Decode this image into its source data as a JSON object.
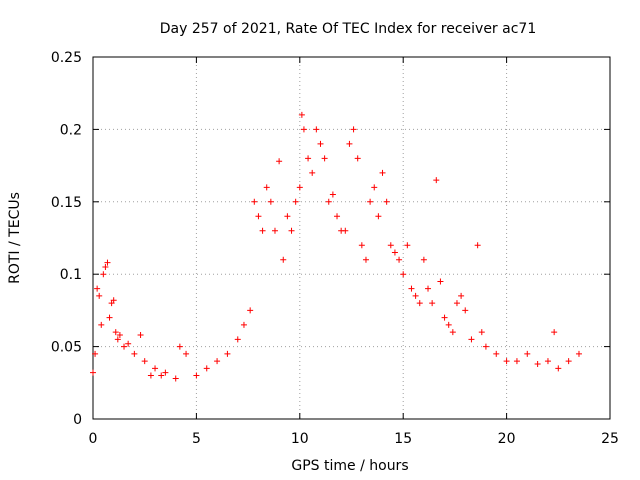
{
  "chart_data": {
    "type": "scatter",
    "title": "Day 257 of 2021, Rate Of TEC Index for receiver ac71",
    "xlabel": "GPS time / hours",
    "ylabel": "ROTI / TECUs",
    "xlim": [
      0,
      25
    ],
    "ylim": [
      0,
      0.25
    ],
    "x_ticks": [
      "0",
      "5",
      "10",
      "15",
      "20",
      "25"
    ],
    "y_ticks": [
      "0",
      "0.05",
      "0.1",
      "0.15",
      "0.2",
      "0.25"
    ],
    "grid": true,
    "marker": "+",
    "series": [
      {
        "color": "#ff0000",
        "points": [
          [
            0.0,
            0.032
          ],
          [
            0.1,
            0.045
          ],
          [
            0.2,
            0.09
          ],
          [
            0.3,
            0.085
          ],
          [
            0.4,
            0.065
          ],
          [
            0.5,
            0.1
          ],
          [
            0.6,
            0.105
          ],
          [
            0.7,
            0.108
          ],
          [
            0.8,
            0.07
          ],
          [
            0.9,
            0.08
          ],
          [
            1.0,
            0.082
          ],
          [
            1.1,
            0.06
          ],
          [
            1.2,
            0.055
          ],
          [
            1.3,
            0.058
          ],
          [
            1.5,
            0.05
          ],
          [
            1.7,
            0.052
          ],
          [
            2.0,
            0.045
          ],
          [
            2.3,
            0.058
          ],
          [
            2.5,
            0.04
          ],
          [
            2.8,
            0.03
          ],
          [
            3.0,
            0.035
          ],
          [
            3.3,
            0.03
          ],
          [
            3.5,
            0.032
          ],
          [
            4.0,
            0.028
          ],
          [
            4.2,
            0.05
          ],
          [
            4.5,
            0.045
          ],
          [
            5.0,
            0.03
          ],
          [
            5.5,
            0.035
          ],
          [
            6.0,
            0.04
          ],
          [
            6.5,
            0.045
          ],
          [
            7.0,
            0.055
          ],
          [
            7.3,
            0.065
          ],
          [
            7.6,
            0.075
          ],
          [
            7.8,
            0.15
          ],
          [
            8.0,
            0.14
          ],
          [
            8.2,
            0.13
          ],
          [
            8.4,
            0.16
          ],
          [
            8.6,
            0.15
          ],
          [
            8.8,
            0.13
          ],
          [
            9.0,
            0.178
          ],
          [
            9.2,
            0.11
          ],
          [
            9.4,
            0.14
          ],
          [
            9.6,
            0.13
          ],
          [
            9.8,
            0.15
          ],
          [
            10.0,
            0.16
          ],
          [
            10.1,
            0.21
          ],
          [
            10.2,
            0.2
          ],
          [
            10.4,
            0.18
          ],
          [
            10.6,
            0.17
          ],
          [
            10.8,
            0.2
          ],
          [
            11.0,
            0.19
          ],
          [
            11.2,
            0.18
          ],
          [
            11.4,
            0.15
          ],
          [
            11.6,
            0.155
          ],
          [
            11.8,
            0.14
          ],
          [
            12.0,
            0.13
          ],
          [
            12.2,
            0.13
          ],
          [
            12.4,
            0.19
          ],
          [
            12.6,
            0.2
          ],
          [
            12.8,
            0.18
          ],
          [
            13.0,
            0.12
          ],
          [
            13.2,
            0.11
          ],
          [
            13.4,
            0.15
          ],
          [
            13.6,
            0.16
          ],
          [
            13.8,
            0.14
          ],
          [
            14.0,
            0.17
          ],
          [
            14.2,
            0.15
          ],
          [
            14.4,
            0.12
          ],
          [
            14.6,
            0.115
          ],
          [
            14.8,
            0.11
          ],
          [
            15.0,
            0.1
          ],
          [
            15.2,
            0.12
          ],
          [
            15.4,
            0.09
          ],
          [
            15.6,
            0.085
          ],
          [
            15.8,
            0.08
          ],
          [
            16.0,
            0.11
          ],
          [
            16.2,
            0.09
          ],
          [
            16.4,
            0.08
          ],
          [
            16.6,
            0.165
          ],
          [
            16.8,
            0.095
          ],
          [
            17.0,
            0.07
          ],
          [
            17.2,
            0.065
          ],
          [
            17.4,
            0.06
          ],
          [
            17.6,
            0.08
          ],
          [
            17.8,
            0.085
          ],
          [
            18.0,
            0.075
          ],
          [
            18.3,
            0.055
          ],
          [
            18.6,
            0.12
          ],
          [
            18.8,
            0.06
          ],
          [
            19.0,
            0.05
          ],
          [
            19.5,
            0.045
          ],
          [
            20.0,
            0.04
          ],
          [
            20.5,
            0.04
          ],
          [
            21.0,
            0.045
          ],
          [
            21.5,
            0.038
          ],
          [
            22.0,
            0.04
          ],
          [
            22.3,
            0.06
          ],
          [
            22.5,
            0.035
          ],
          [
            23.0,
            0.04
          ],
          [
            23.5,
            0.045
          ]
        ]
      }
    ]
  }
}
